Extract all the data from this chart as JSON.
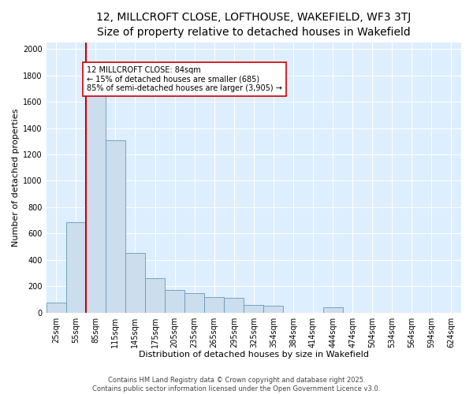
{
  "title_line1": "12, MILLCROFT CLOSE, LOFTHOUSE, WAKEFIELD, WF3 3TJ",
  "title_line2": "Size of property relative to detached houses in Wakefield",
  "xlabel": "Distribution of detached houses by size in Wakefield",
  "ylabel": "Number of detached properties",
  "bin_labels": [
    "25sqm",
    "55sqm",
    "85sqm",
    "115sqm",
    "145sqm",
    "175sqm",
    "205sqm",
    "235sqm",
    "265sqm",
    "295sqm",
    "325sqm",
    "354sqm",
    "384sqm",
    "414sqm",
    "444sqm",
    "474sqm",
    "504sqm",
    "534sqm",
    "564sqm",
    "594sqm",
    "624sqm"
  ],
  "bar_values": [
    75,
    685,
    1690,
    1310,
    450,
    258,
    170,
    145,
    115,
    110,
    55,
    50,
    0,
    0,
    40,
    0,
    0,
    0,
    0,
    0,
    0
  ],
  "bar_color": "#ccdded",
  "bar_edge_color": "#6699bb",
  "vline_color": "#cc0000",
  "annotation_text": "12 MILLCROFT CLOSE: 84sqm\n← 15% of detached houses are smaller (685)\n85% of semi-detached houses are larger (3,905) →",
  "annotation_box_color": "#ffffff",
  "annotation_box_edge": "#cc0000",
  "ylim": [
    0,
    2050
  ],
  "yticks": [
    0,
    200,
    400,
    600,
    800,
    1000,
    1200,
    1400,
    1600,
    1800,
    2000
  ],
  "fig_bg_color": "#ffffff",
  "plot_bg_color": "#ddeeff",
  "footer_text": "Contains HM Land Registry data © Crown copyright and database right 2025.\nContains public sector information licensed under the Open Government Licence v3.0.",
  "title_fontsize": 10,
  "subtitle_fontsize": 9,
  "axis_label_fontsize": 8,
  "tick_fontsize": 7,
  "annotation_fontsize": 7,
  "footer_fontsize": 6
}
